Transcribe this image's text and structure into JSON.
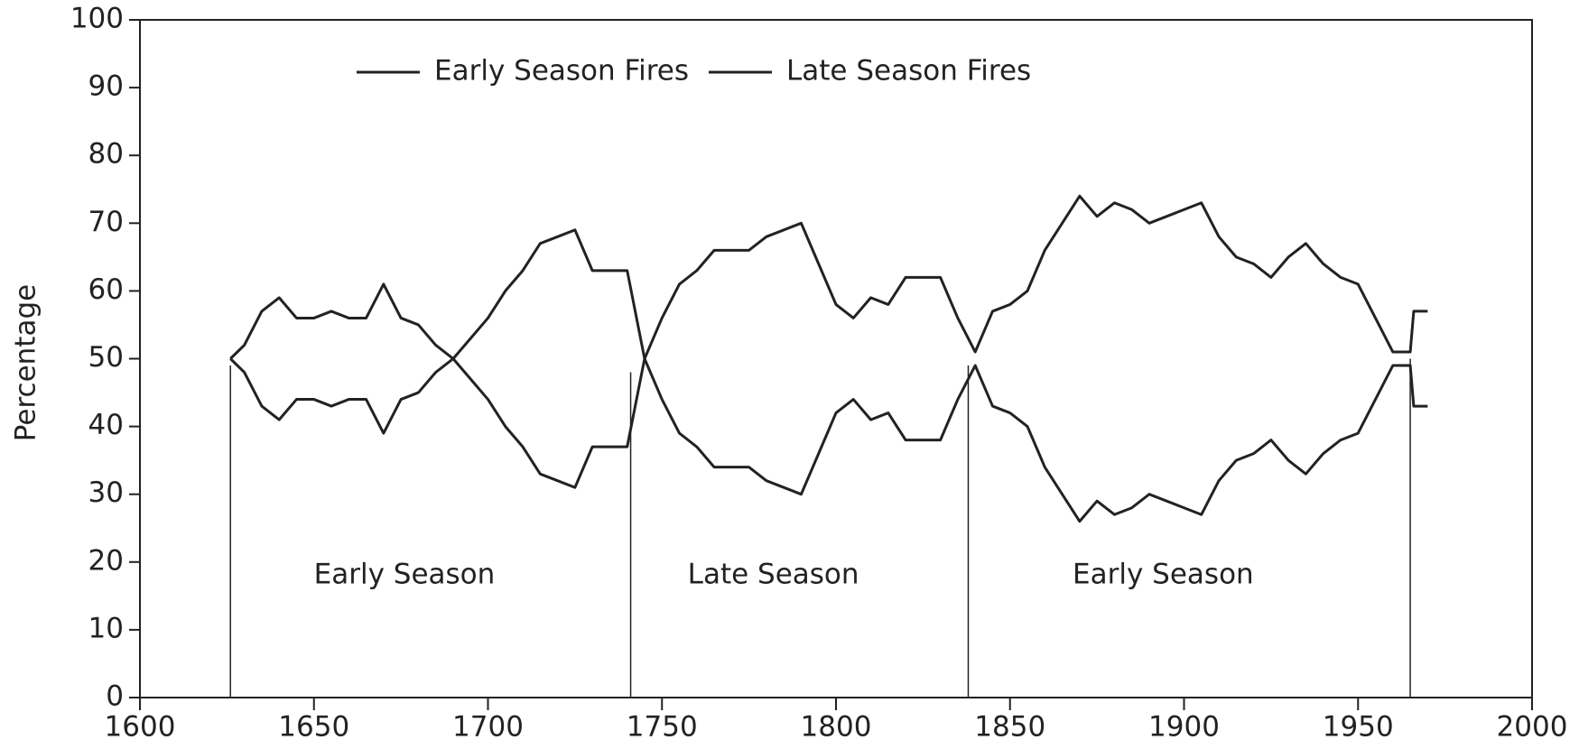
{
  "chart_data": {
    "type": "line",
    "ylabel": "Percentage",
    "xlim": [
      1600,
      2000
    ],
    "xticks": [
      1600,
      1650,
      1700,
      1750,
      1800,
      1850,
      1900,
      1950,
      2000
    ],
    "ylim": [
      0,
      100
    ],
    "yticks": [
      0,
      10,
      20,
      30,
      40,
      50,
      60,
      70,
      80,
      90,
      100
    ],
    "legend": "top",
    "x": [
      1626,
      1630,
      1635,
      1640,
      1645,
      1650,
      1655,
      1660,
      1665,
      1670,
      1675,
      1680,
      1685,
      1690,
      1695,
      1700,
      1705,
      1710,
      1715,
      1720,
      1725,
      1730,
      1735,
      1740,
      1745,
      1750,
      1755,
      1760,
      1765,
      1770,
      1775,
      1780,
      1785,
      1790,
      1795,
      1800,
      1805,
      1810,
      1815,
      1820,
      1825,
      1830,
      1835,
      1840,
      1845,
      1850,
      1855,
      1860,
      1865,
      1870,
      1875,
      1880,
      1885,
      1890,
      1895,
      1900,
      1905,
      1910,
      1915,
      1920,
      1925,
      1930,
      1935,
      1940,
      1945,
      1950,
      1955,
      1960,
      1965,
      1966,
      1970
    ],
    "series": [
      {
        "name": "Early Season Fires",
        "color": "#222222",
        "values": [
          50,
          52,
          57,
          59,
          56,
          56,
          57,
          56,
          56,
          61,
          56,
          55,
          52,
          50,
          53,
          56,
          60,
          63,
          67,
          68,
          69,
          63,
          63,
          63,
          50,
          56,
          61,
          63,
          66,
          66,
          66,
          68,
          69,
          70,
          64,
          58,
          56,
          59,
          58,
          62,
          62,
          62,
          56,
          51,
          57,
          58,
          60,
          66,
          70,
          74,
          71,
          73,
          72,
          70,
          71,
          72,
          73,
          68,
          65,
          64,
          62,
          65,
          67,
          64,
          62,
          61,
          56,
          51,
          51,
          57,
          57
        ]
      },
      {
        "name": "Late Season Fires",
        "color": "#222222",
        "values": [
          50,
          48,
          43,
          41,
          44,
          44,
          43,
          44,
          44,
          39,
          44,
          45,
          48,
          50,
          47,
          44,
          40,
          37,
          33,
          32,
          31,
          37,
          37,
          37,
          50,
          44,
          39,
          37,
          34,
          34,
          34,
          32,
          31,
          30,
          36,
          42,
          44,
          41,
          42,
          38,
          38,
          38,
          44,
          49,
          43,
          42,
          40,
          34,
          30,
          26,
          29,
          27,
          28,
          30,
          29,
          28,
          27,
          32,
          35,
          36,
          38,
          35,
          33,
          36,
          38,
          39,
          44,
          49,
          49,
          43,
          43
        ]
      }
    ],
    "vlines": [
      {
        "x": 1626,
        "y": 49
      },
      {
        "x": 1741,
        "y": 48
      },
      {
        "x": 1838,
        "y": 49
      },
      {
        "x": 1965,
        "y": 50
      }
    ],
    "annotations": [
      {
        "text": "Early Season",
        "x": 1676,
        "y": 18
      },
      {
        "text": "Late Season",
        "x": 1782,
        "y": 18
      },
      {
        "text": "Early Season",
        "x": 1894,
        "y": 18
      }
    ]
  }
}
